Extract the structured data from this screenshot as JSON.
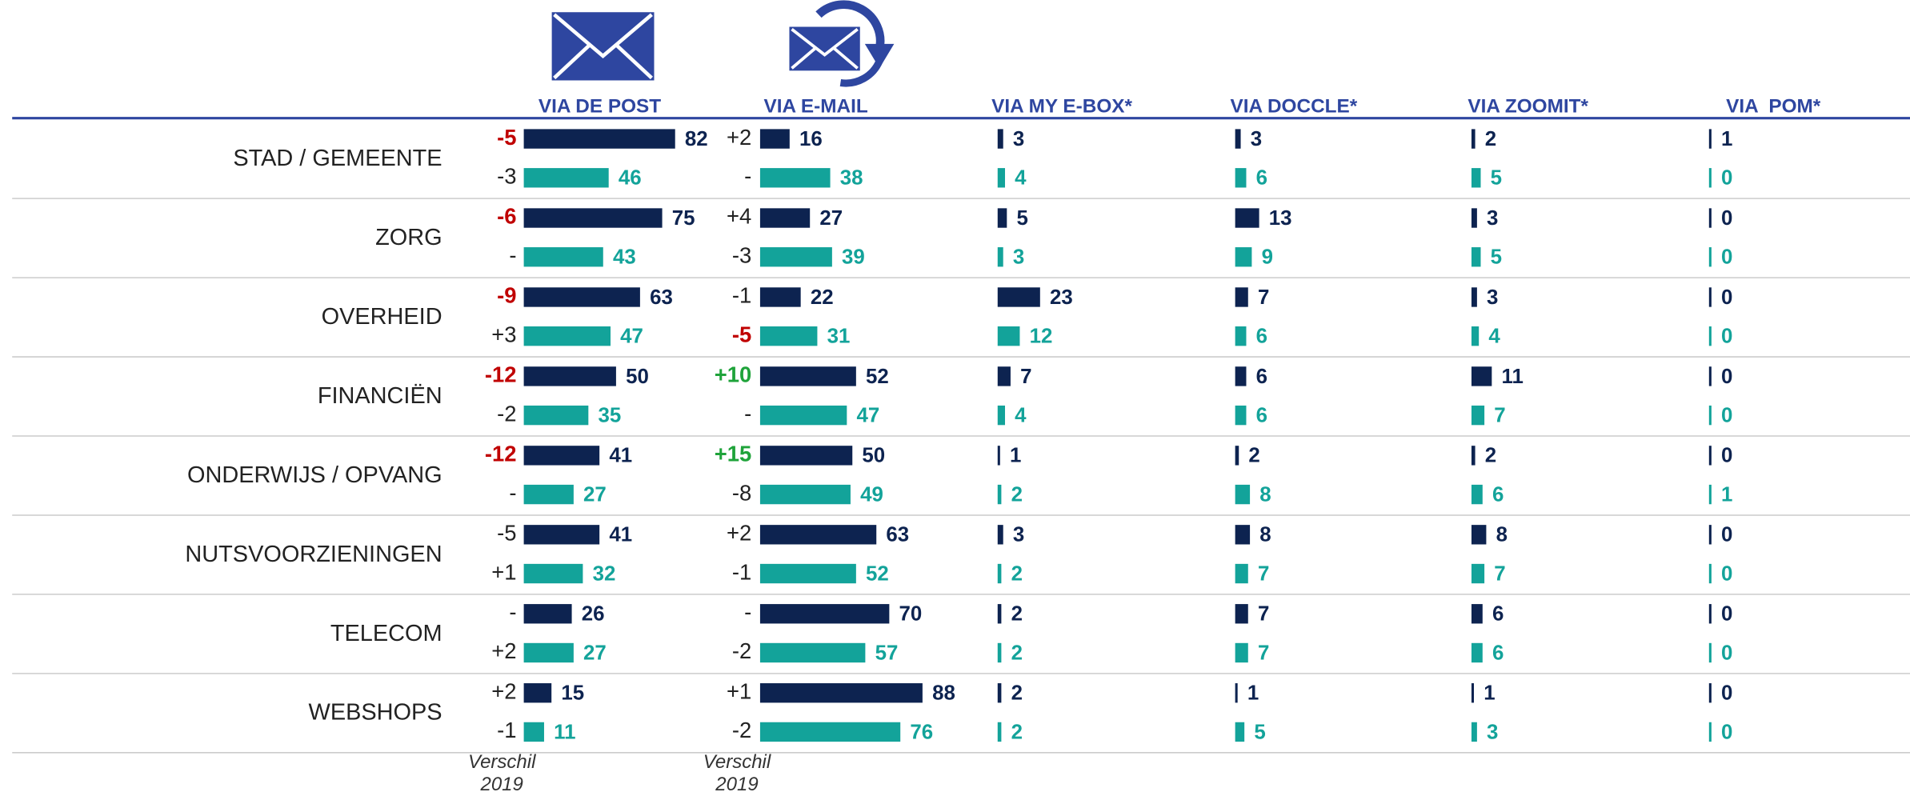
{
  "chart_data": {
    "type": "bar",
    "categories": [
      "STAD / GEMEENTE",
      "ZORG",
      "OVERHEID",
      "FINANCIËN",
      "ONDERWIJS / OPVANG",
      "NUTSVOORZIENINGEN",
      "TELECOM",
      "WEBSHOPS"
    ],
    "diff_note": "Verschil 2019",
    "panels": [
      {
        "title": "VIA DE POST",
        "series": [
          {
            "color": "#0d2350",
            "values": [
              82,
              75,
              63,
              50,
              41,
              41,
              26,
              15
            ],
            "diff_labels": [
              "-5",
              "-6",
              "-9",
              "-12",
              "-12",
              "-5",
              "-",
              "+2"
            ],
            "diff_colors": [
              "#c00000",
              "#c00000",
              "#c00000",
              "#c00000",
              "#c00000",
              null,
              null,
              null
            ]
          },
          {
            "color": "#13a39a",
            "values": [
              46,
              43,
              47,
              35,
              27,
              32,
              27,
              11
            ],
            "diff_labels": [
              "-3",
              "-",
              "+3",
              "-2",
              "-",
              "+1",
              "+2",
              "-1"
            ],
            "diff_colors": [
              null,
              null,
              null,
              null,
              null,
              null,
              null,
              null
            ]
          }
        ]
      },
      {
        "title": "VIA E-MAIL",
        "series": [
          {
            "color": "#0d2350",
            "values": [
              16,
              27,
              22,
              52,
              50,
              63,
              70,
              88
            ],
            "diff_labels": [
              "+2",
              "+4",
              "-1",
              "+10",
              "+15",
              "+2",
              "-",
              "+1"
            ],
            "diff_colors": [
              null,
              null,
              null,
              "#1fa33a",
              "#1fa33a",
              null,
              null,
              null
            ]
          },
          {
            "color": "#13a39a",
            "values": [
              38,
              39,
              31,
              47,
              49,
              52,
              57,
              76
            ],
            "diff_labels": [
              "-",
              "-3",
              "-5",
              "-",
              "-8",
              "-1",
              "-2",
              "-2"
            ],
            "diff_colors": [
              null,
              null,
              "#c00000",
              null,
              null,
              null,
              null,
              null
            ]
          }
        ]
      },
      {
        "title": "VIA MY E-BOX*",
        "series": [
          {
            "color": "#0d2350",
            "values": [
              3,
              5,
              23,
              7,
              1,
              3,
              2,
              2
            ]
          },
          {
            "color": "#13a39a",
            "values": [
              4,
              3,
              12,
              4,
              2,
              2,
              2,
              2
            ]
          }
        ]
      },
      {
        "title": "VIA DOCCLE*",
        "series": [
          {
            "color": "#0d2350",
            "values": [
              3,
              13,
              7,
              6,
              2,
              8,
              7,
              1
            ]
          },
          {
            "color": "#13a39a",
            "values": [
              6,
              9,
              6,
              6,
              8,
              7,
              7,
              5
            ]
          }
        ]
      },
      {
        "title": "VIA ZOOMIT*",
        "series": [
          {
            "color": "#0d2350",
            "values": [
              2,
              3,
              3,
              11,
              2,
              8,
              6,
              1
            ]
          },
          {
            "color": "#13a39a",
            "values": [
              5,
              5,
              4,
              7,
              6,
              7,
              6,
              3
            ]
          }
        ]
      },
      {
        "title": "VIA  POM*",
        "series": [
          {
            "color": "#0d2350",
            "values": [
              1,
              0,
              0,
              0,
              0,
              0,
              0,
              0
            ]
          },
          {
            "color": "#13a39a",
            "values": [
              0,
              0,
              0,
              0,
              1,
              0,
              0,
              0
            ]
          }
        ]
      }
    ]
  }
}
